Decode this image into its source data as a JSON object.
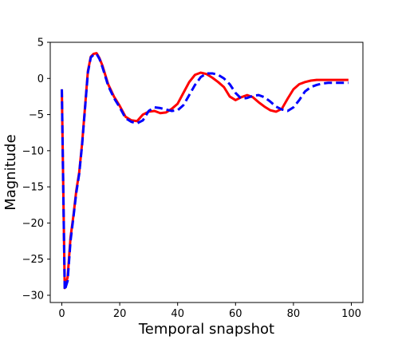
{
  "chart_data": {
    "type": "line",
    "title": "",
    "xlabel": "Temporal snapshot",
    "ylabel": "Magnitude",
    "xlim": [
      -4,
      104
    ],
    "ylim": [
      -31,
      5
    ],
    "xticks": [
      0,
      20,
      40,
      60,
      80,
      100
    ],
    "yticks": [
      5,
      0,
      -5,
      -10,
      -15,
      -20,
      -25,
      -30
    ],
    "grid": false,
    "legend": "none",
    "series": [
      {
        "color": "#ff0000",
        "style": "solid",
        "x": [
          0,
          1,
          2,
          3,
          4,
          5,
          6,
          7,
          8,
          9,
          10,
          11,
          12,
          13,
          14,
          15,
          16,
          18,
          20,
          22,
          24,
          26,
          28,
          30,
          32,
          34,
          36,
          38,
          40,
          42,
          44,
          46,
          48,
          50,
          52,
          54,
          56,
          58,
          60,
          62,
          64,
          66,
          68,
          70,
          72,
          74,
          76,
          78,
          80,
          82,
          84,
          86,
          88,
          90,
          92,
          94,
          96,
          98,
          99
        ],
        "values": [
          -1.5,
          -29.0,
          -27.5,
          -22.0,
          -19.0,
          -15.5,
          -13.0,
          -9.0,
          -4.0,
          1.0,
          3.0,
          3.4,
          3.5,
          2.8,
          1.8,
          0.5,
          -0.8,
          -2.5,
          -3.8,
          -5.3,
          -5.8,
          -5.9,
          -5.0,
          -4.6,
          -4.5,
          -4.8,
          -4.7,
          -4.2,
          -3.5,
          -2.0,
          -0.5,
          0.5,
          0.8,
          0.6,
          0.1,
          -0.5,
          -1.2,
          -2.5,
          -3.0,
          -2.6,
          -2.3,
          -2.6,
          -3.3,
          -3.9,
          -4.4,
          -4.6,
          -4.2,
          -2.8,
          -1.5,
          -0.8,
          -0.5,
          -0.3,
          -0.2,
          -0.2,
          -0.2,
          -0.2,
          -0.2,
          -0.2,
          -0.2
        ]
      },
      {
        "color": "#0000ff",
        "style": "dashed",
        "x": [
          0,
          1,
          2,
          3,
          4,
          5,
          6,
          7,
          8,
          9,
          10,
          11,
          12,
          13,
          14,
          15,
          16,
          18,
          20,
          22,
          24,
          26,
          28,
          30,
          32,
          34,
          36,
          38,
          40,
          42,
          44,
          46,
          48,
          50,
          52,
          54,
          56,
          58,
          60,
          62,
          64,
          66,
          68,
          70,
          72,
          74,
          76,
          78,
          80,
          82,
          84,
          86,
          88,
          90,
          92,
          94,
          96,
          98,
          99
        ],
        "values": [
          -1.5,
          -29.3,
          -28.0,
          -22.5,
          -19.2,
          -15.8,
          -13.2,
          -9.2,
          -4.2,
          0.8,
          2.9,
          3.3,
          3.4,
          2.7,
          1.6,
          0.3,
          -1.0,
          -2.7,
          -4.0,
          -5.5,
          -6.0,
          -6.2,
          -5.8,
          -4.5,
          -4.0,
          -4.1,
          -4.3,
          -4.5,
          -4.4,
          -3.7,
          -2.3,
          -0.9,
          0.2,
          0.7,
          0.7,
          0.5,
          0.0,
          -0.8,
          -2.0,
          -2.8,
          -2.7,
          -2.4,
          -2.3,
          -2.6,
          -3.2,
          -3.9,
          -4.3,
          -4.5,
          -4.0,
          -3.0,
          -1.8,
          -1.2,
          -0.9,
          -0.7,
          -0.6,
          -0.6,
          -0.6,
          -0.6,
          -0.6
        ]
      }
    ]
  }
}
